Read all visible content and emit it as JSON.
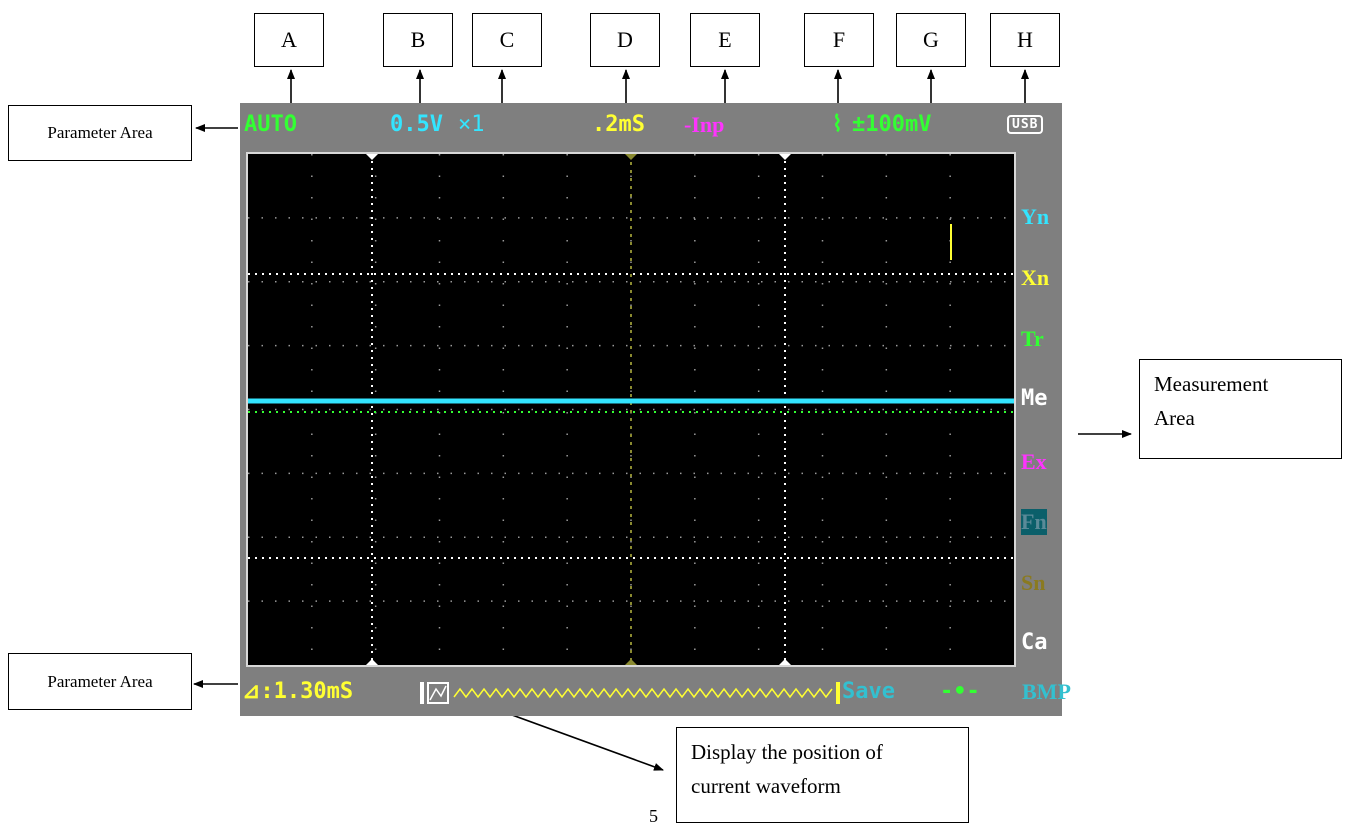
{
  "callouts": {
    "letters": [
      "A",
      "B",
      "C",
      "D",
      "E",
      "F",
      "G",
      "H"
    ],
    "param_top": "Parameter Area",
    "param_bottom": "Parameter Area",
    "measurement_line1": "Measurement",
    "measurement_line2": "Area",
    "position_line1": "Display the position of",
    "position_line2": "current waveform",
    "page_number": "5"
  },
  "scope": {
    "top_bar": {
      "mode": "AUTO",
      "volts_div": "0.5V",
      "probe": "×1",
      "time_div": ".2mS",
      "coupling": "-Inp",
      "trigger_symbol": "⌇",
      "trigger_level": "±100mV",
      "usb": "USB"
    },
    "side_menu": [
      "Yn",
      "Xn",
      "Tr",
      "Me",
      "Ex",
      "Fn",
      "Sn",
      "Ca"
    ],
    "bottom_bar": {
      "delta": "⊿:1.30mS",
      "save": "Save",
      "format": "BMP"
    },
    "colors": {
      "mode": "#33ff33",
      "volts": "#33e5ff",
      "time": "#ffff33",
      "coupling": "#ff33ff",
      "trigger": "#33ff33",
      "trace": "#33e5ff",
      "frame": "#7f7f7f",
      "screen": "#000000"
    }
  }
}
